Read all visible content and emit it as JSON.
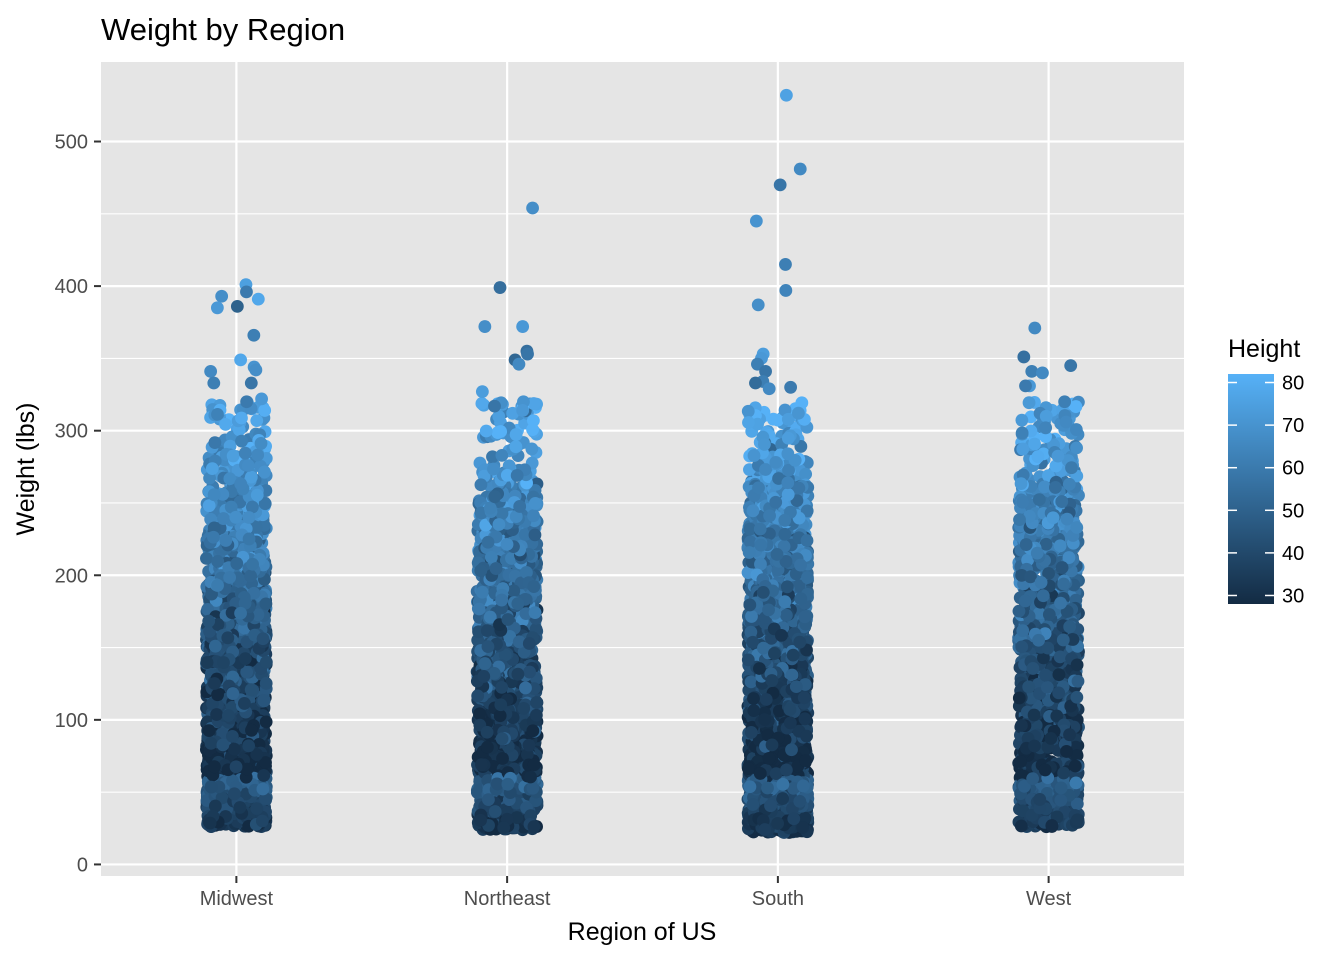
{
  "chart_data": {
    "type": "scatter",
    "subtype": "jitter-strip",
    "title": "Weight by Region",
    "xlabel": "Region of US",
    "ylabel": "Weight (lbs)",
    "categories": [
      "Midwest",
      "Northeast",
      "South",
      "West"
    ],
    "ylim": [
      -8,
      555
    ],
    "yticks": [
      0,
      100,
      200,
      300,
      400,
      500
    ],
    "grid": true,
    "panel_background": "#e5e5e5",
    "grid_color": "#ffffff",
    "legend": {
      "title": "Height",
      "placement": "right",
      "range": [
        28,
        82
      ],
      "ticks": [
        30,
        40,
        50,
        60,
        70,
        80
      ],
      "color_low": "#132b43",
      "color_high": "#56b1f7"
    },
    "series": [
      {
        "category": "Midwest",
        "weight_range": [
          22,
          402
        ],
        "outliers": [
          {
            "weight": 401,
            "height": 75
          },
          {
            "weight": 391,
            "height": 78
          },
          {
            "weight": 393,
            "height": 68
          },
          {
            "weight": 385,
            "height": 72
          },
          {
            "weight": 396,
            "height": 60
          },
          {
            "weight": 386,
            "height": 50
          },
          {
            "weight": 366,
            "height": 62
          },
          {
            "weight": 349,
            "height": 78
          },
          {
            "weight": 344,
            "height": 70
          },
          {
            "weight": 342,
            "height": 68
          },
          {
            "weight": 341,
            "height": 66
          },
          {
            "weight": 333,
            "height": 62
          },
          {
            "weight": 333,
            "height": 58
          },
          {
            "weight": 322,
            "height": 72
          },
          {
            "weight": 320,
            "height": 60
          }
        ]
      },
      {
        "category": "Northeast",
        "weight_range": [
          20,
          455
        ],
        "outliers": [
          {
            "weight": 454,
            "height": 68
          },
          {
            "weight": 399,
            "height": 55
          },
          {
            "weight": 372,
            "height": 72
          },
          {
            "weight": 372,
            "height": 68
          },
          {
            "weight": 355,
            "height": 55
          },
          {
            "weight": 353,
            "height": 58
          },
          {
            "weight": 349,
            "height": 52
          },
          {
            "weight": 346,
            "height": 66
          },
          {
            "weight": 327,
            "height": 74
          },
          {
            "weight": 320,
            "height": 70
          },
          {
            "weight": 317,
            "height": 58
          },
          {
            "weight": 314,
            "height": 72
          }
        ]
      },
      {
        "category": "South",
        "weight_range": [
          18,
          532
        ],
        "outliers": [
          {
            "weight": 532,
            "height": 76
          },
          {
            "weight": 481,
            "height": 66
          },
          {
            "weight": 470,
            "height": 58
          },
          {
            "weight": 445,
            "height": 70
          },
          {
            "weight": 415,
            "height": 62
          },
          {
            "weight": 397,
            "height": 64
          },
          {
            "weight": 387,
            "height": 68
          },
          {
            "weight": 353,
            "height": 74
          },
          {
            "weight": 350,
            "height": 72
          },
          {
            "weight": 346,
            "height": 62
          },
          {
            "weight": 341,
            "height": 58
          },
          {
            "weight": 334,
            "height": 62
          },
          {
            "weight": 333,
            "height": 54
          },
          {
            "weight": 330,
            "height": 60
          },
          {
            "weight": 329,
            "height": 66
          }
        ]
      },
      {
        "category": "West",
        "weight_range": [
          22,
          372
        ],
        "outliers": [
          {
            "weight": 371,
            "height": 66
          },
          {
            "weight": 351,
            "height": 56
          },
          {
            "weight": 345,
            "height": 58
          },
          {
            "weight": 341,
            "height": 62
          },
          {
            "weight": 340,
            "height": 66
          },
          {
            "weight": 331,
            "height": 72
          },
          {
            "weight": 331,
            "height": 60
          },
          {
            "weight": 320,
            "height": 62
          },
          {
            "weight": 312,
            "height": 64
          },
          {
            "weight": 310,
            "height": 74
          },
          {
            "weight": 306,
            "height": 66
          },
          {
            "weight": 302,
            "height": 64
          }
        ]
      }
    ]
  }
}
